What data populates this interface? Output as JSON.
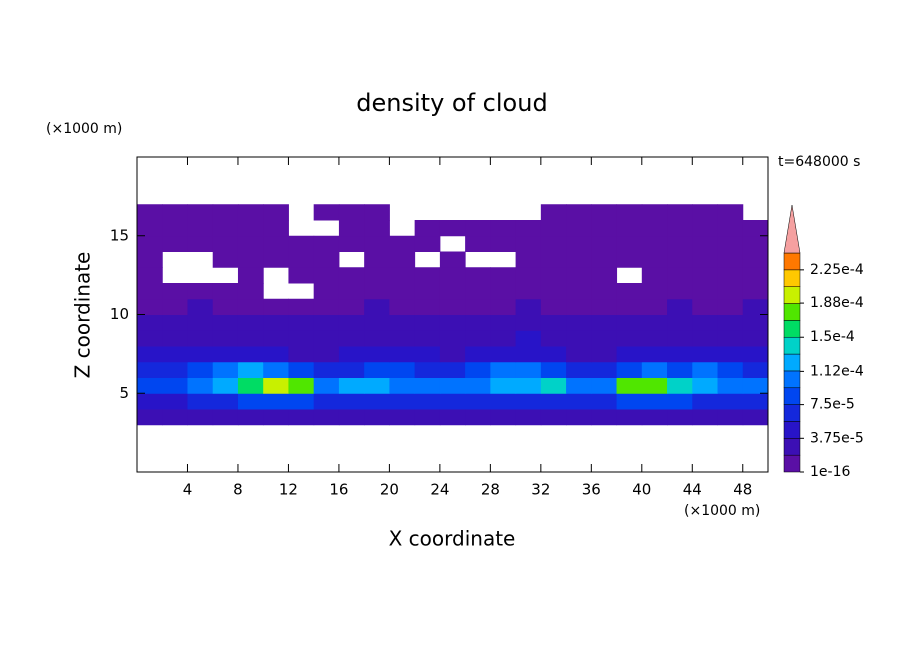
{
  "chart_data": {
    "type": "contour",
    "title": "density of cloud",
    "x_unit": "(×1000 m)",
    "y_unit": "(×1000 m)",
    "time_label": "t=648000 s",
    "x_label": "X coordinate",
    "y_label": "Z coordinate",
    "xlim": [
      0,
      50
    ],
    "ylim": [
      0,
      20
    ],
    "xticks": [
      4,
      8,
      12,
      16,
      20,
      24,
      28,
      32,
      36,
      40,
      44,
      48
    ],
    "yticks": [
      5,
      10,
      15
    ],
    "x": [
      1,
      3,
      5,
      7,
      9,
      11,
      13,
      15,
      17,
      19,
      21,
      23,
      25,
      27,
      29,
      31,
      33,
      35,
      37,
      39,
      41,
      43,
      45,
      47,
      49
    ],
    "z": [
      3.5,
      4.5,
      5.5,
      6.5,
      7.5,
      8.5,
      9.5,
      10.5,
      11.5,
      12.5,
      13.5,
      14.5,
      15.5,
      16.5
    ],
    "values": [
      [
        2e-05,
        2e-05,
        2e-05,
        2e-05,
        2e-05,
        2e-05,
        2e-05,
        2e-05,
        2e-05,
        2e-05,
        2e-05,
        2e-05,
        2e-05,
        2e-05,
        2e-05,
        2e-05,
        2e-05,
        2e-05,
        2e-05,
        2e-05,
        2e-05,
        2e-05,
        2e-05,
        2e-05,
        2e-05
      ],
      [
        5e-05,
        5e-05,
        6e-05,
        7e-05,
        8e-05,
        9e-05,
        8e-05,
        6e-05,
        7e-05,
        7e-05,
        6e-05,
        6e-05,
        6e-05,
        6e-05,
        7e-05,
        7e-05,
        6e-05,
        6e-05,
        7e-05,
        9e-05,
        9e-05,
        8e-05,
        7e-05,
        7e-05,
        6e-05
      ],
      [
        8e-05,
        9e-05,
        0.0001,
        0.00013,
        0.00016,
        0.00019,
        0.00017,
        0.0001,
        0.00012,
        0.00013,
        0.00011,
        0.0001,
        0.00011,
        0.00011,
        0.00012,
        0.00013,
        0.00014,
        0.00011,
        0.0001,
        0.00017,
        0.00018,
        0.00014,
        0.00013,
        0.00011,
        0.0001
      ],
      [
        6e-05,
        7e-05,
        8e-05,
        0.0001,
        0.00012,
        0.00011,
        9e-05,
        7e-05,
        7e-05,
        8e-05,
        8e-05,
        7e-05,
        7e-05,
        8e-05,
        0.0001,
        0.00011,
        9e-05,
        7e-05,
        7e-05,
        9e-05,
        0.0001,
        9e-05,
        0.0001,
        8e-05,
        7e-05
      ],
      [
        4e-05,
        4e-05,
        5e-05,
        4e-05,
        4e-05,
        4e-05,
        3e-05,
        3e-05,
        4e-05,
        4e-05,
        4e-05,
        4e-05,
        3e-05,
        4e-05,
        5e-05,
        5e-05,
        4e-05,
        3e-05,
        3e-05,
        4e-05,
        4e-05,
        4e-05,
        5e-05,
        4e-05,
        4e-05
      ],
      [
        3e-05,
        3e-05,
        3e-05,
        2e-05,
        3e-05,
        3e-05,
        2e-05,
        3e-05,
        3e-05,
        3e-05,
        2e-05,
        3e-05,
        3e-05,
        3e-05,
        3e-05,
        4e-05,
        3e-05,
        3e-05,
        2e-05,
        3e-05,
        3e-05,
        3e-05,
        3e-05,
        3e-05,
        2e-05
      ],
      [
        2e-05,
        2e-05,
        2e-05,
        2e-05,
        2e-05,
        2e-05,
        2e-05,
        2e-05,
        2e-05,
        2e-05,
        2e-05,
        2e-05,
        2e-05,
        2e-05,
        2e-05,
        2e-05,
        2e-05,
        2e-05,
        2e-05,
        2e-05,
        2e-05,
        2e-05,
        2e-05,
        2e-05,
        2e-05
      ],
      [
        1e-05,
        1e-05,
        2e-05,
        1e-05,
        1e-05,
        1e-05,
        1e-05,
        1e-05,
        1e-05,
        2e-05,
        1e-05,
        1e-05,
        1e-05,
        1e-05,
        1e-05,
        2e-05,
        1e-05,
        1e-05,
        1e-05,
        1e-05,
        1e-05,
        2e-05,
        1e-05,
        1e-05,
        2e-05
      ],
      [
        1e-05,
        1e-05,
        1e-05,
        1e-05,
        1e-05,
        null,
        null,
        1e-05,
        1e-05,
        1e-05,
        1e-05,
        1e-05,
        1e-05,
        1e-05,
        1e-05,
        1e-05,
        1e-05,
        1e-05,
        1e-05,
        1e-05,
        1e-05,
        1e-05,
        1e-05,
        1e-05,
        1e-05
      ],
      [
        1e-05,
        null,
        null,
        null,
        1e-05,
        null,
        1e-05,
        1e-05,
        1e-05,
        1e-05,
        1e-05,
        1e-05,
        1e-05,
        1e-05,
        1e-05,
        1e-05,
        1e-05,
        1e-05,
        1e-05,
        null,
        1e-05,
        1e-05,
        1e-05,
        1e-05,
        1e-05
      ],
      [
        1e-05,
        null,
        null,
        1e-05,
        1e-05,
        1e-05,
        1e-05,
        1e-05,
        null,
        1e-05,
        1e-05,
        null,
        1e-05,
        null,
        null,
        1e-05,
        1e-05,
        1e-05,
        1e-05,
        1e-05,
        1e-05,
        1e-05,
        1e-05,
        1e-05,
        1e-05
      ],
      [
        1e-05,
        1e-05,
        1e-05,
        1e-05,
        1e-05,
        1e-05,
        1e-05,
        1e-05,
        1e-05,
        1e-05,
        1e-05,
        1e-05,
        null,
        1e-05,
        1e-05,
        1e-05,
        1e-05,
        1e-05,
        1e-05,
        1e-05,
        1e-05,
        1e-05,
        1e-05,
        1e-05,
        1e-05
      ],
      [
        1e-05,
        1e-05,
        1e-05,
        1e-05,
        1e-05,
        1e-05,
        null,
        null,
        1e-05,
        1e-05,
        null,
        1e-05,
        1e-05,
        1e-05,
        1e-05,
        1e-05,
        1e-05,
        1e-05,
        1e-05,
        1e-05,
        1e-05,
        1e-05,
        1e-05,
        1e-05,
        1e-05
      ],
      [
        1e-05,
        1e-05,
        1e-05,
        1e-05,
        1e-05,
        1e-05,
        null,
        1e-05,
        1e-05,
        1e-05,
        null,
        null,
        null,
        null,
        null,
        null,
        1e-05,
        1e-05,
        1e-05,
        1e-05,
        1e-05,
        1e-05,
        1e-05,
        1e-05,
        null
      ]
    ],
    "levels": [
      1e-16,
      1.875e-05,
      3.75e-05,
      5.625e-05,
      7.5e-05,
      9.375e-05,
      0.0001125,
      0.00013125,
      0.00015,
      0.00016875,
      0.0001875,
      0.00020625,
      0.000225,
      0.00024375
    ],
    "colors": [
      "#5a0fa5",
      "#3c0fb4",
      "#2814c8",
      "#1428dc",
      "#0046f0",
      "#0073ff",
      "#00aaff",
      "#00d2c8",
      "#00dc64",
      "#50e600",
      "#c8f000",
      "#ffc800",
      "#ff7800",
      "#ff2800",
      "#f5a0a0"
    ],
    "colorbar_ticks": [
      1e-16,
      {
        "value": 3.75e-05,
        "label": "3.75e-5"
      },
      {
        "value": 7.5e-05,
        "label": "7.5e-5"
      },
      {
        "value": 0.000112,
        "label": "1.12e-4"
      },
      {
        "value": 0.00015,
        "label": "1.5e-4"
      },
      {
        "value": 0.000188,
        "label": "1.88e-4"
      },
      {
        "value": 0.000225,
        "label": "2.25e-4"
      }
    ]
  }
}
